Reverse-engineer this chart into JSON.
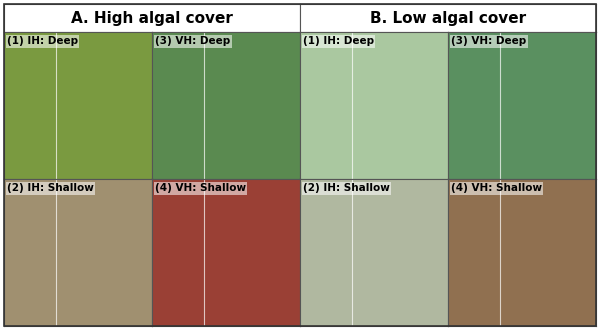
{
  "title_A": "A. High algal cover",
  "title_B": "B. Low algal cover",
  "panel_labels": {
    "A_top_left": "(1) IH: Deep",
    "A_top_right": "(3) VH: Deep",
    "A_bot_left": "(2) IH: Shallow",
    "A_bot_right": "(4) VH: Shallow",
    "B_top_left": "(1) IH: Deep",
    "B_top_right": "(3) VH: Deep",
    "B_bot_left": "(2) IH: Shallow",
    "B_bot_right": "(4) VH: Shallow"
  },
  "panel_colors": {
    "A_top_left": "#7a9a40",
    "A_top_right": "#5a8a50",
    "A_bot_left": "#a09070",
    "A_bot_right": "#9a4035",
    "B_top_left": "#aac8a0",
    "B_top_right": "#5a9060",
    "B_bot_left": "#b0b8a0",
    "B_bot_right": "#907050"
  },
  "header_bg": "#ffffff",
  "border_color": "#555555",
  "label_bg_alpha": 0.55,
  "label_fontsize": 7.5,
  "title_fontsize": 11,
  "fig_width": 6.0,
  "fig_height": 3.3,
  "fig_dpi": 100
}
